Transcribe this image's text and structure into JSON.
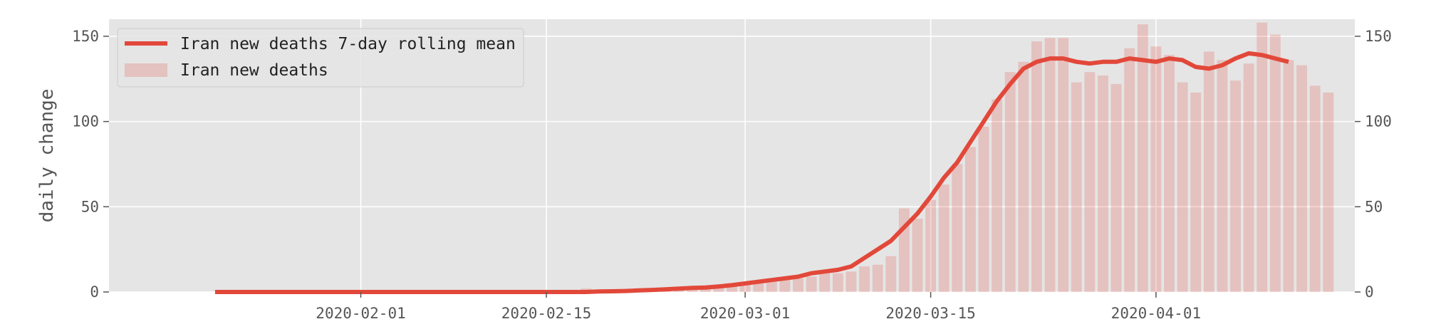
{
  "chart_data": {
    "type": "bar+line",
    "ylabel": "daily change",
    "ylim": [
      0,
      160
    ],
    "xlim": [
      "2020-01-13",
      "2020-04-16"
    ],
    "yticks": [
      0,
      50,
      100,
      150
    ],
    "xticks": [
      "2020-02-01",
      "2020-02-15",
      "2020-03-01",
      "2020-03-15",
      "2020-04-01"
    ],
    "grid": true,
    "legend_position": "top-left",
    "bar_color": "#e2483a",
    "line_color": "#e2483a",
    "background_color": "#e5e5e5",
    "series": [
      {
        "name": "Iran new deaths 7-day rolling mean",
        "type": "line",
        "start_date": "2020-01-21",
        "values": [
          0,
          0,
          0,
          0,
          0,
          0,
          0,
          0,
          0,
          0,
          0,
          0,
          0,
          0,
          0,
          0,
          0,
          0,
          0,
          0,
          0,
          0,
          0,
          0,
          0,
          0,
          0,
          0,
          0,
          0.3,
          0.4,
          0.6,
          0.9,
          1.2,
          1.6,
          2.0,
          2.4,
          2.6,
          3.2,
          4.0,
          5.0,
          6.0,
          7.0,
          8.0,
          9.0,
          11.0,
          12.0,
          13.0,
          15.0,
          20.0,
          25.0,
          30.0,
          38.0,
          46.0,
          56.0,
          67.0,
          76.0,
          88.0,
          100.0,
          112.0,
          122.0,
          131.0,
          135.0,
          137.0,
          137.0,
          135.0,
          134.0,
          135.0,
          135.0,
          137.0,
          136.0,
          135.0,
          137.0,
          136.0,
          132.0,
          131.0,
          133.0,
          137.0,
          140.0,
          139.0,
          137.0,
          135.0
        ]
      },
      {
        "name": "Iran new deaths",
        "type": "bar",
        "start_date": "2020-01-21",
        "values": [
          0,
          0,
          0,
          0,
          0,
          0,
          0,
          0,
          0,
          0,
          0,
          0,
          0,
          0,
          0,
          0,
          0,
          0,
          0,
          0,
          0,
          0,
          0,
          0,
          0,
          0,
          0,
          0,
          2,
          0,
          0,
          1,
          1,
          1,
          1,
          1,
          2,
          2,
          3,
          4,
          4,
          5,
          6,
          7,
          8,
          9,
          11,
          11,
          12,
          15,
          16,
          21,
          49,
          43,
          54,
          63,
          75,
          85,
          97,
          113,
          129,
          135,
          147,
          149,
          149,
          123,
          129,
          127,
          122,
          143,
          157,
          144,
          139,
          123,
          117,
          141,
          136,
          124,
          134,
          158,
          151,
          136,
          133,
          121,
          117
        ]
      }
    ]
  }
}
